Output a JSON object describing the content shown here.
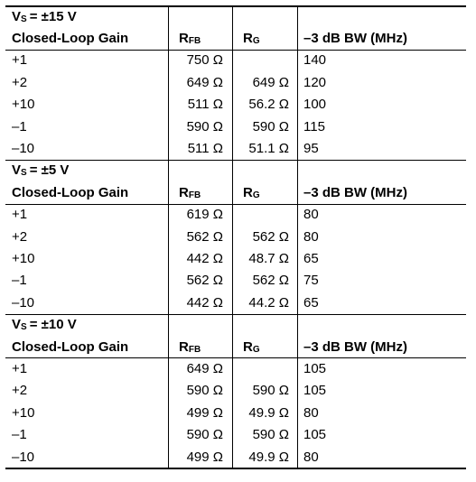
{
  "sections": [
    {
      "supply": "= ±15 V",
      "header": {
        "gain": "Closed-Loop Gain",
        "rfb_main": "R",
        "rfb_sub": "FB",
        "rg_main": "R",
        "rg_sub": "G",
        "bw": "–3 dB BW (MHz)"
      },
      "rows": [
        {
          "gain": "+1",
          "rfb": "750 Ω",
          "rg": "",
          "bw": "140"
        },
        {
          "gain": "+2",
          "rfb": "649 Ω",
          "rg": "649 Ω",
          "bw": "120"
        },
        {
          "gain": "+10",
          "rfb": "511 Ω",
          "rg": "56.2 Ω",
          "bw": "100"
        },
        {
          "gain": "–1",
          "rfb": "590 Ω",
          "rg": "590 Ω",
          "bw": "115"
        },
        {
          "gain": "–10",
          "rfb": "511 Ω",
          "rg": "51.1 Ω",
          "bw": "95"
        }
      ]
    },
    {
      "supply": "= ±5 V",
      "header": {
        "gain": "Closed-Loop Gain",
        "rfb_main": "R",
        "rfb_sub": "FB",
        "rg_main": "R",
        "rg_sub": "G",
        "bw": "–3 dB BW (MHz)"
      },
      "rows": [
        {
          "gain": "+1",
          "rfb": "619 Ω",
          "rg": "",
          "bw": "80"
        },
        {
          "gain": "+2",
          "rfb": "562 Ω",
          "rg": "562 Ω",
          "bw": "80"
        },
        {
          "gain": "+10",
          "rfb": "442 Ω",
          "rg": "48.7 Ω",
          "bw": "65"
        },
        {
          "gain": "–1",
          "rfb": "562 Ω",
          "rg": "562 Ω",
          "bw": "75"
        },
        {
          "gain": "–10",
          "rfb": "442 Ω",
          "rg": "44.2 Ω",
          "bw": "65"
        }
      ]
    },
    {
      "supply": "= ±10 V",
      "header": {
        "gain": "Closed-Loop Gain",
        "rfb_main": "R",
        "rfb_sub": "FB",
        "rg_main": "R",
        "rg_sub": "G",
        "bw": "–3 dB BW (MHz)"
      },
      "rows": [
        {
          "gain": "+1",
          "rfb": "649 Ω",
          "rg": "",
          "bw": "105"
        },
        {
          "gain": "+2",
          "rfb": "590 Ω",
          "rg": "590 Ω",
          "bw": "105"
        },
        {
          "gain": "+10",
          "rfb": "499 Ω",
          "rg": "49.9 Ω",
          "bw": "80"
        },
        {
          "gain": "–1",
          "rfb": "590 Ω",
          "rg": "590 Ω",
          "bw": "105"
        },
        {
          "gain": "–10",
          "rfb": "499 Ω",
          "rg": "49.9 Ω",
          "bw": "80"
        }
      ]
    }
  ],
  "supply_label": {
    "main": "V",
    "sub": "S"
  }
}
